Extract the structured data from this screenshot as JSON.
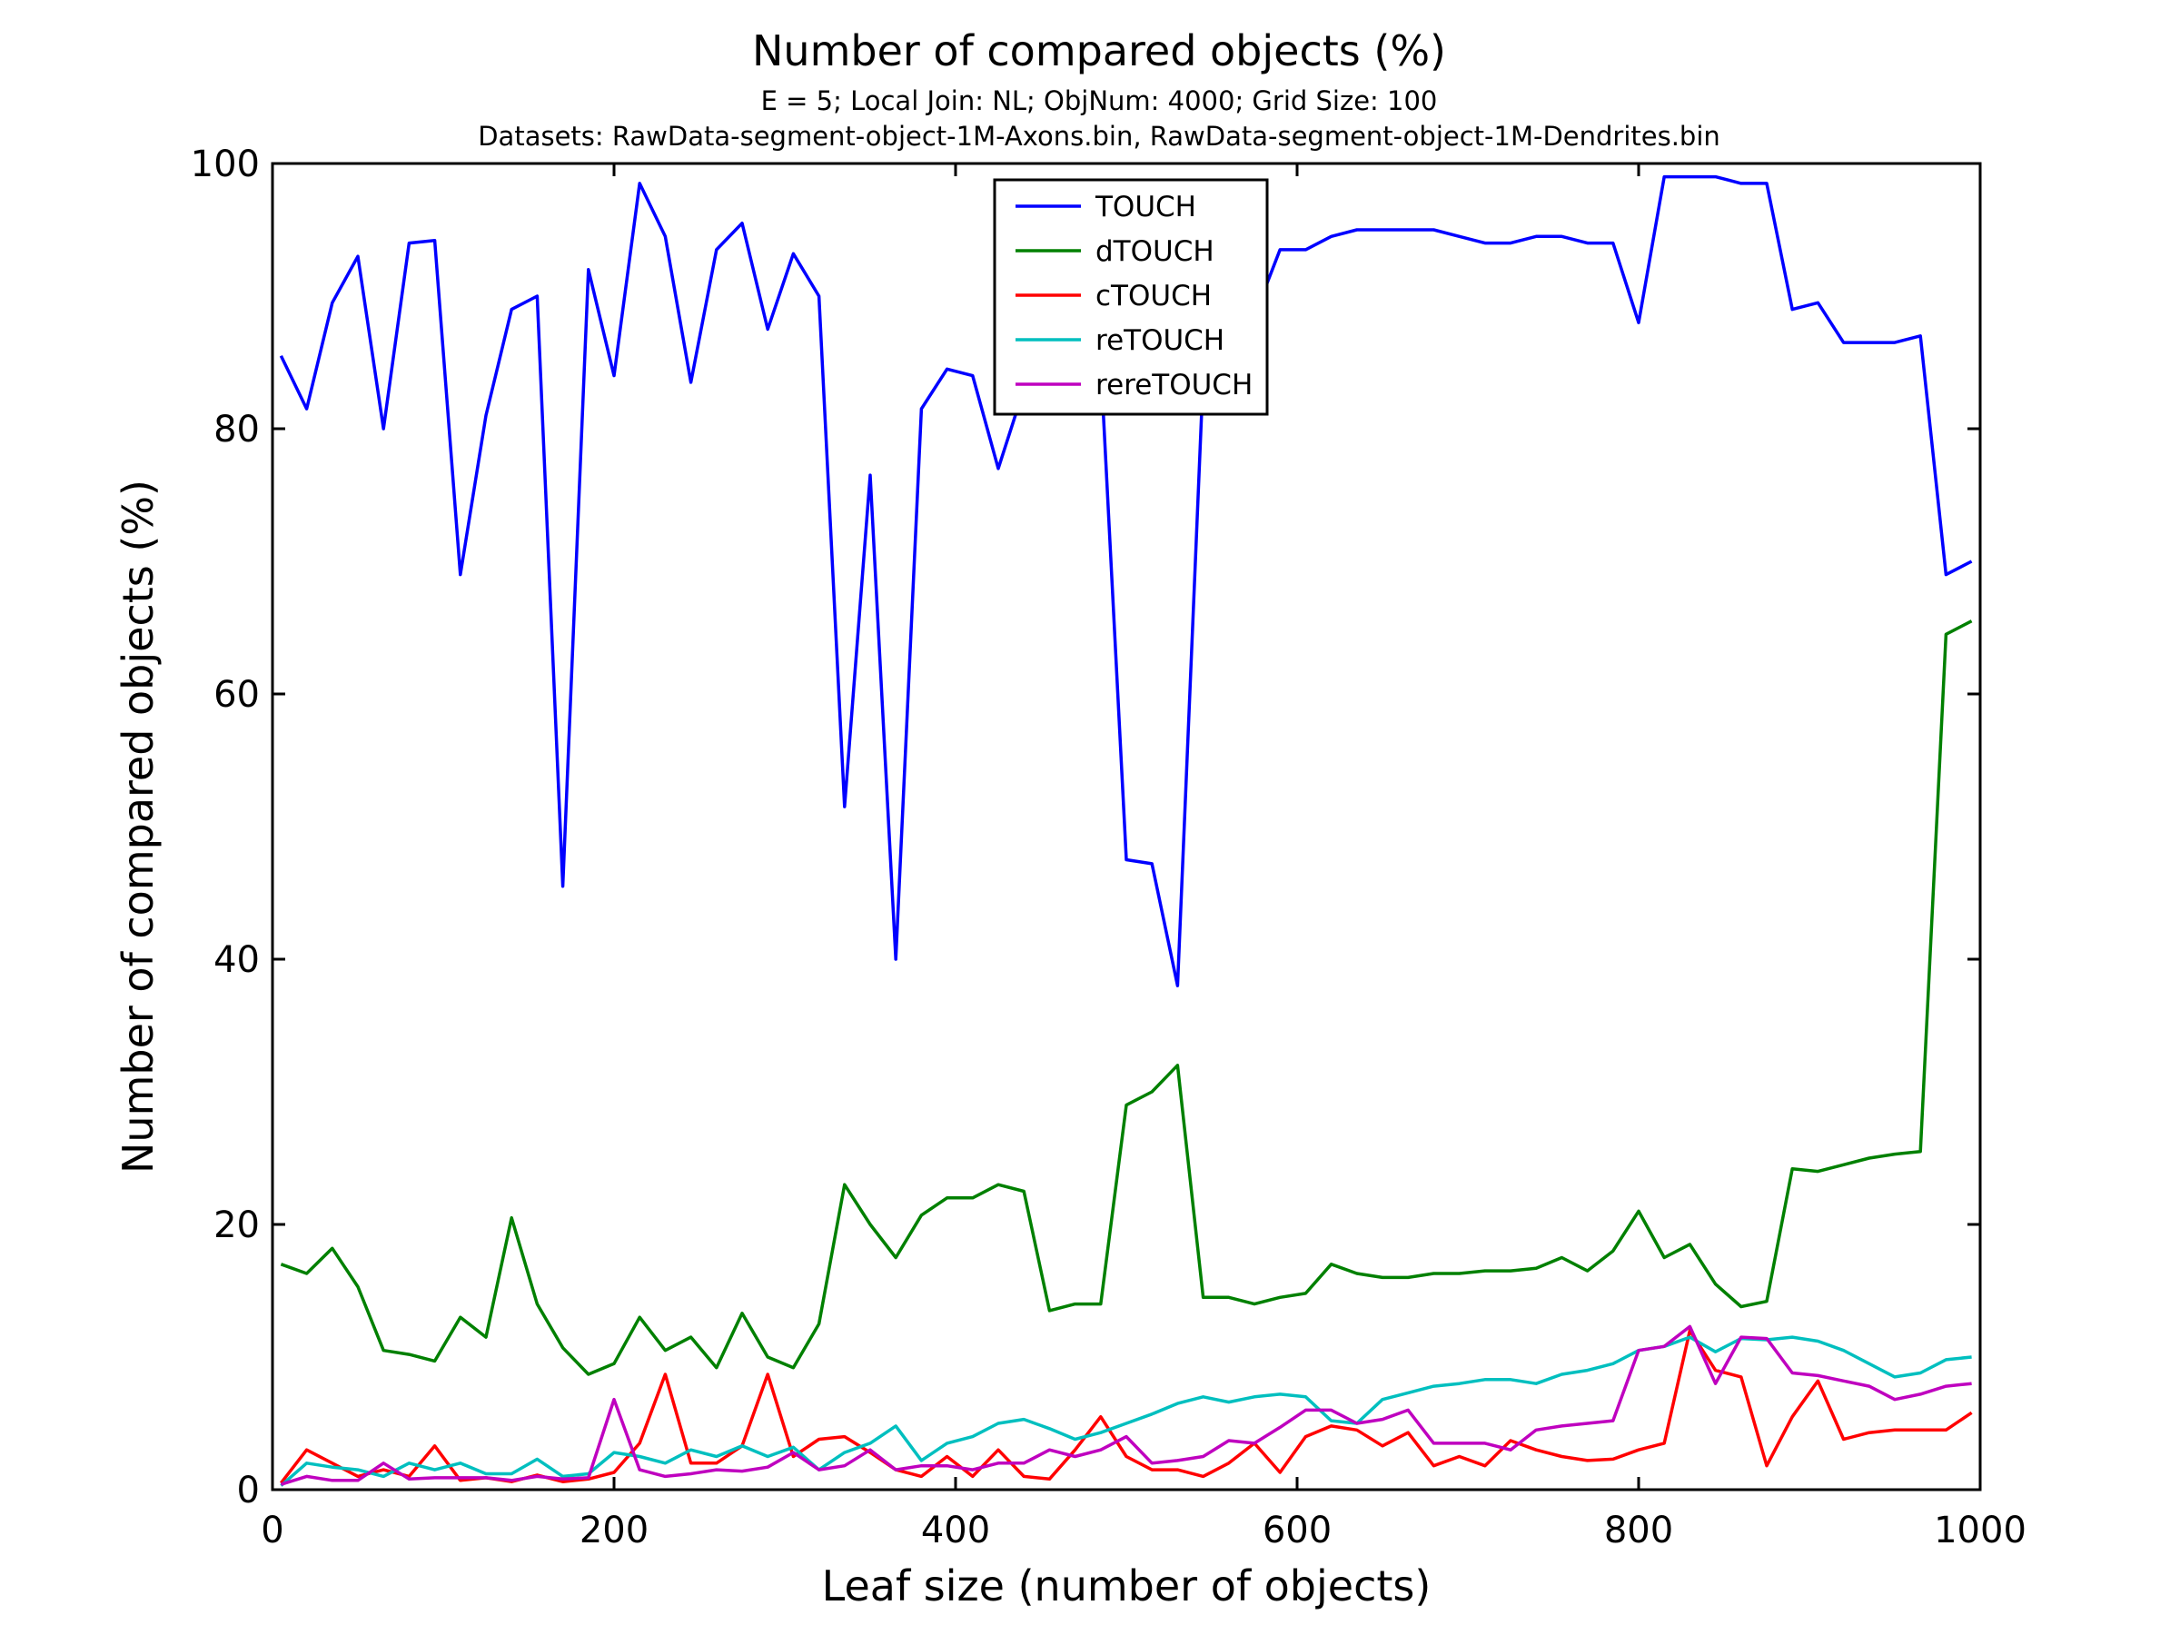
{
  "chart_data": {
    "type": "line",
    "title": "Number of compared objects (%)",
    "subtitle_lines": [
      "E = 5; Local Join: NL; ObjNum: 4000; Grid Size: 100",
      "Datasets: RawData-segment-object-1M-Axons.bin, RawData-segment-object-1M-Dendrites.bin"
    ],
    "xlabel": "Leaf size (number of objects)",
    "ylabel": "Number of compared objects (%)",
    "xlim": [
      0,
      1000
    ],
    "ylim": [
      0,
      100
    ],
    "xticks": [
      0,
      200,
      400,
      600,
      800,
      1000
    ],
    "yticks": [
      0,
      20,
      40,
      60,
      80,
      100
    ],
    "grid": false,
    "legend_position": "top-center",
    "x": [
      5,
      20,
      35,
      50,
      65,
      80,
      95,
      110,
      125,
      140,
      155,
      170,
      185,
      200,
      215,
      230,
      245,
      260,
      275,
      290,
      305,
      320,
      335,
      350,
      365,
      380,
      395,
      410,
      425,
      440,
      455,
      470,
      485,
      500,
      515,
      530,
      545,
      560,
      575,
      590,
      605,
      620,
      635,
      650,
      665,
      680,
      695,
      710,
      725,
      740,
      755,
      770,
      785,
      800,
      815,
      830,
      845,
      860,
      875,
      890,
      905,
      920,
      935,
      950,
      965,
      980,
      995
    ],
    "series": [
      {
        "name": "TOUCH",
        "color": "#0000ff",
        "values": [
          85.5,
          81.5,
          89.5,
          93,
          80,
          94,
          94.2,
          69,
          81,
          89,
          90,
          45.5,
          92,
          84,
          98.5,
          94.5,
          83.5,
          93.5,
          95.5,
          87.5,
          93.2,
          90,
          51.5,
          76.5,
          40,
          81.5,
          84.5,
          84,
          77,
          83,
          84,
          85,
          85,
          47.5,
          47.2,
          38,
          84,
          86,
          88.5,
          93.5,
          93.5,
          94.5,
          95,
          95,
          95,
          95,
          94.5,
          94,
          94,
          94.5,
          94.5,
          94,
          94,
          88,
          99,
          99,
          99,
          98.5,
          98.5,
          89,
          89.5,
          86.5,
          86.5,
          86.5,
          87,
          69,
          70
        ]
      },
      {
        "name": "dTOUCH",
        "color": "#008000",
        "values": [
          17,
          16.3,
          18.2,
          15.3,
          10.5,
          10.2,
          9.7,
          13,
          11.5,
          20.5,
          14,
          10.7,
          8.7,
          9.5,
          13,
          10.5,
          11.5,
          9.2,
          13.3,
          10,
          9.2,
          12.5,
          23,
          20,
          17.5,
          20.7,
          22,
          22,
          23,
          22.5,
          13.5,
          14,
          14,
          29,
          30,
          32,
          14.5,
          14.5,
          14,
          14.5,
          14.8,
          17,
          16.3,
          16,
          16,
          16.3,
          16.3,
          16.5,
          16.5,
          16.7,
          17.5,
          16.5,
          18,
          21,
          17.5,
          18.5,
          15.5,
          13.8,
          14.2,
          24.2,
          24,
          24.5,
          25,
          25.3,
          25.5,
          64.5,
          65.5
        ]
      },
      {
        "name": "cTOUCH",
        "color": "#ff0000",
        "values": [
          0.5,
          3,
          2,
          1,
          1.5,
          1,
          3.3,
          0.7,
          0.9,
          0.6,
          1.1,
          0.6,
          0.8,
          1.3,
          3.5,
          8.7,
          2,
          2,
          3.3,
          8.7,
          2.5,
          3.8,
          4,
          2.8,
          1.5,
          1,
          2.5,
          1,
          3,
          1,
          0.8,
          3,
          5.5,
          2.5,
          1.5,
          1.5,
          1,
          2,
          3.5,
          1.3,
          4,
          4.8,
          4.5,
          3.3,
          4.3,
          1.8,
          2.5,
          1.8,
          3.7,
          3,
          2.5,
          2.2,
          2.3,
          3,
          3.5,
          12,
          9,
          8.5,
          1.8,
          5.5,
          8.2,
          3.8,
          4.3,
          4.5,
          4.5,
          4.5,
          5.8
        ]
      },
      {
        "name": "reTOUCH",
        "color": "#00bfbf",
        "values": [
          0.3,
          2,
          1.7,
          1.5,
          1,
          2,
          1.5,
          2,
          1.2,
          1.2,
          2.3,
          1,
          1.2,
          2.8,
          2.5,
          2,
          3,
          2.5,
          3.3,
          2.5,
          3.2,
          1.5,
          2.8,
          3.5,
          4.8,
          2.2,
          3.5,
          4,
          5,
          5.3,
          4.6,
          3.8,
          4.3,
          5,
          5.7,
          6.5,
          7,
          6.6,
          7,
          7.2,
          7,
          5.2,
          5,
          6.8,
          7.3,
          7.8,
          8,
          8.3,
          8.3,
          8,
          8.7,
          9,
          9.5,
          10.5,
          10.8,
          11.5,
          10.4,
          11.4,
          11.3,
          11.5,
          11.2,
          10.5,
          9.5,
          8.5,
          8.8,
          9.8,
          10
        ]
      },
      {
        "name": "rereTOUCH",
        "color": "#bf00bf",
        "values": [
          0.4,
          1,
          0.7,
          0.7,
          2,
          0.8,
          0.9,
          0.9,
          0.9,
          0.7,
          1,
          0.8,
          0.9,
          6.8,
          1.5,
          1,
          1.2,
          1.5,
          1.4,
          1.7,
          2.8,
          1.5,
          1.8,
          3,
          1.5,
          1.8,
          1.8,
          1.5,
          2,
          2,
          3,
          2.5,
          3,
          4,
          2,
          2.2,
          2.5,
          3.7,
          3.5,
          4.7,
          6,
          6,
          5,
          5.3,
          6,
          3.5,
          3.5,
          3.5,
          3,
          4.5,
          4.8,
          5,
          5.2,
          10.5,
          10.8,
          12.3,
          8,
          11.5,
          11.4,
          8.8,
          8.6,
          8.2,
          7.8,
          6.8,
          7.2,
          7.8,
          8
        ]
      }
    ]
  }
}
